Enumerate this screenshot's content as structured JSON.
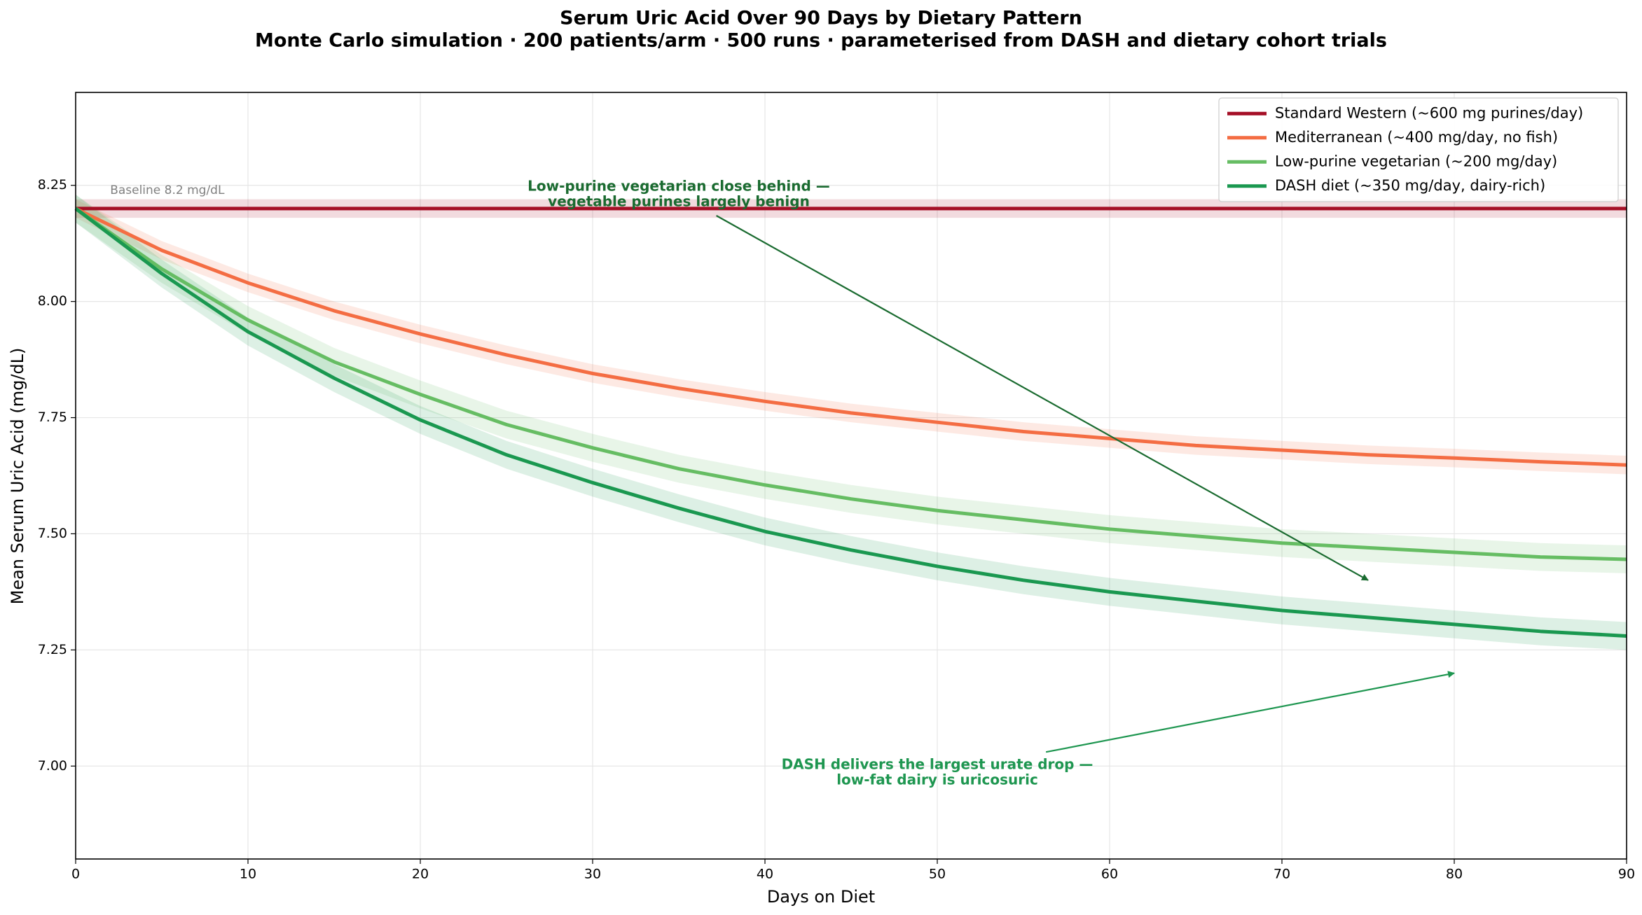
{
  "chart_data": {
    "type": "line",
    "title": "Serum Uric Acid Over 90 Days by Dietary Pattern",
    "subtitle": "Monte Carlo simulation · 200 patients/arm · 500 runs · parameterised from DASH and dietary cohort trials",
    "xlabel": "Days on Diet",
    "ylabel": "Mean Serum Uric Acid (mg/dL)",
    "x": [
      0,
      5,
      10,
      15,
      20,
      25,
      30,
      35,
      40,
      45,
      50,
      55,
      60,
      65,
      70,
      75,
      80,
      85,
      90
    ],
    "series": [
      {
        "name": "Standard Western (~600 mg purines/day)",
        "color": "#a50f26",
        "ci": 0.02,
        "values": [
          8.2,
          8.2,
          8.2,
          8.2,
          8.2,
          8.2,
          8.2,
          8.2,
          8.2,
          8.2,
          8.2,
          8.2,
          8.2,
          8.2,
          8.2,
          8.2,
          8.2,
          8.2,
          8.2
        ]
      },
      {
        "name": "Mediterranean (~400 mg/day, no fish)",
        "color": "#f46d43",
        "ci": 0.02,
        "values": [
          8.2,
          8.11,
          8.04,
          7.98,
          7.93,
          7.885,
          7.845,
          7.813,
          7.785,
          7.76,
          7.74,
          7.72,
          7.705,
          7.69,
          7.68,
          7.67,
          7.663,
          7.655,
          7.648
        ]
      },
      {
        "name": "Low-purine vegetarian (~200 mg/day)",
        "color": "#66bd63",
        "ci": 0.03,
        "values": [
          8.2,
          8.07,
          7.96,
          7.87,
          7.8,
          7.735,
          7.685,
          7.64,
          7.605,
          7.575,
          7.55,
          7.53,
          7.51,
          7.495,
          7.48,
          7.47,
          7.46,
          7.45,
          7.445
        ]
      },
      {
        "name": "DASH diet (~350 mg/day, dairy-rich)",
        "color": "#1a9850",
        "ci": 0.03,
        "values": [
          8.2,
          8.06,
          7.935,
          7.835,
          7.745,
          7.67,
          7.61,
          7.555,
          7.505,
          7.465,
          7.43,
          7.4,
          7.375,
          7.355,
          7.335,
          7.32,
          7.305,
          7.29,
          7.28
        ]
      }
    ],
    "baseline": 8.2,
    "baseline_label": "Baseline 8.2 mg/dL",
    "annotations": [
      {
        "lines": [
          "Low-purine vegetarian close behind —",
          "vegetable purines largely benign"
        ],
        "xy": [
          75,
          7.4
        ],
        "xytext": [
          35,
          8.23
        ],
        "color": "#1a6b30"
      },
      {
        "lines": [
          "DASH delivers the largest urate drop —",
          "low-fat dairy is uricosuric"
        ],
        "xy": [
          80,
          7.2
        ],
        "xytext": [
          50,
          6.985
        ],
        "color": "#1e9650"
      }
    ],
    "xlim": [
      0,
      90
    ],
    "xticks": [
      0,
      10,
      20,
      30,
      40,
      50,
      60,
      70,
      80,
      90
    ],
    "ylim": [
      6.8,
      8.45
    ],
    "yticks": [
      {
        "value": 7,
        "label": "7.00"
      },
      {
        "value": 7.25,
        "label": "7.25"
      },
      {
        "value": 7.5,
        "label": "7.50"
      },
      {
        "value": 7.75,
        "label": "7.75"
      },
      {
        "value": 8,
        "label": "8.00"
      },
      {
        "value": 8.25,
        "label": "8.25"
      }
    ],
    "grid": true,
    "legend": "upper right"
  }
}
